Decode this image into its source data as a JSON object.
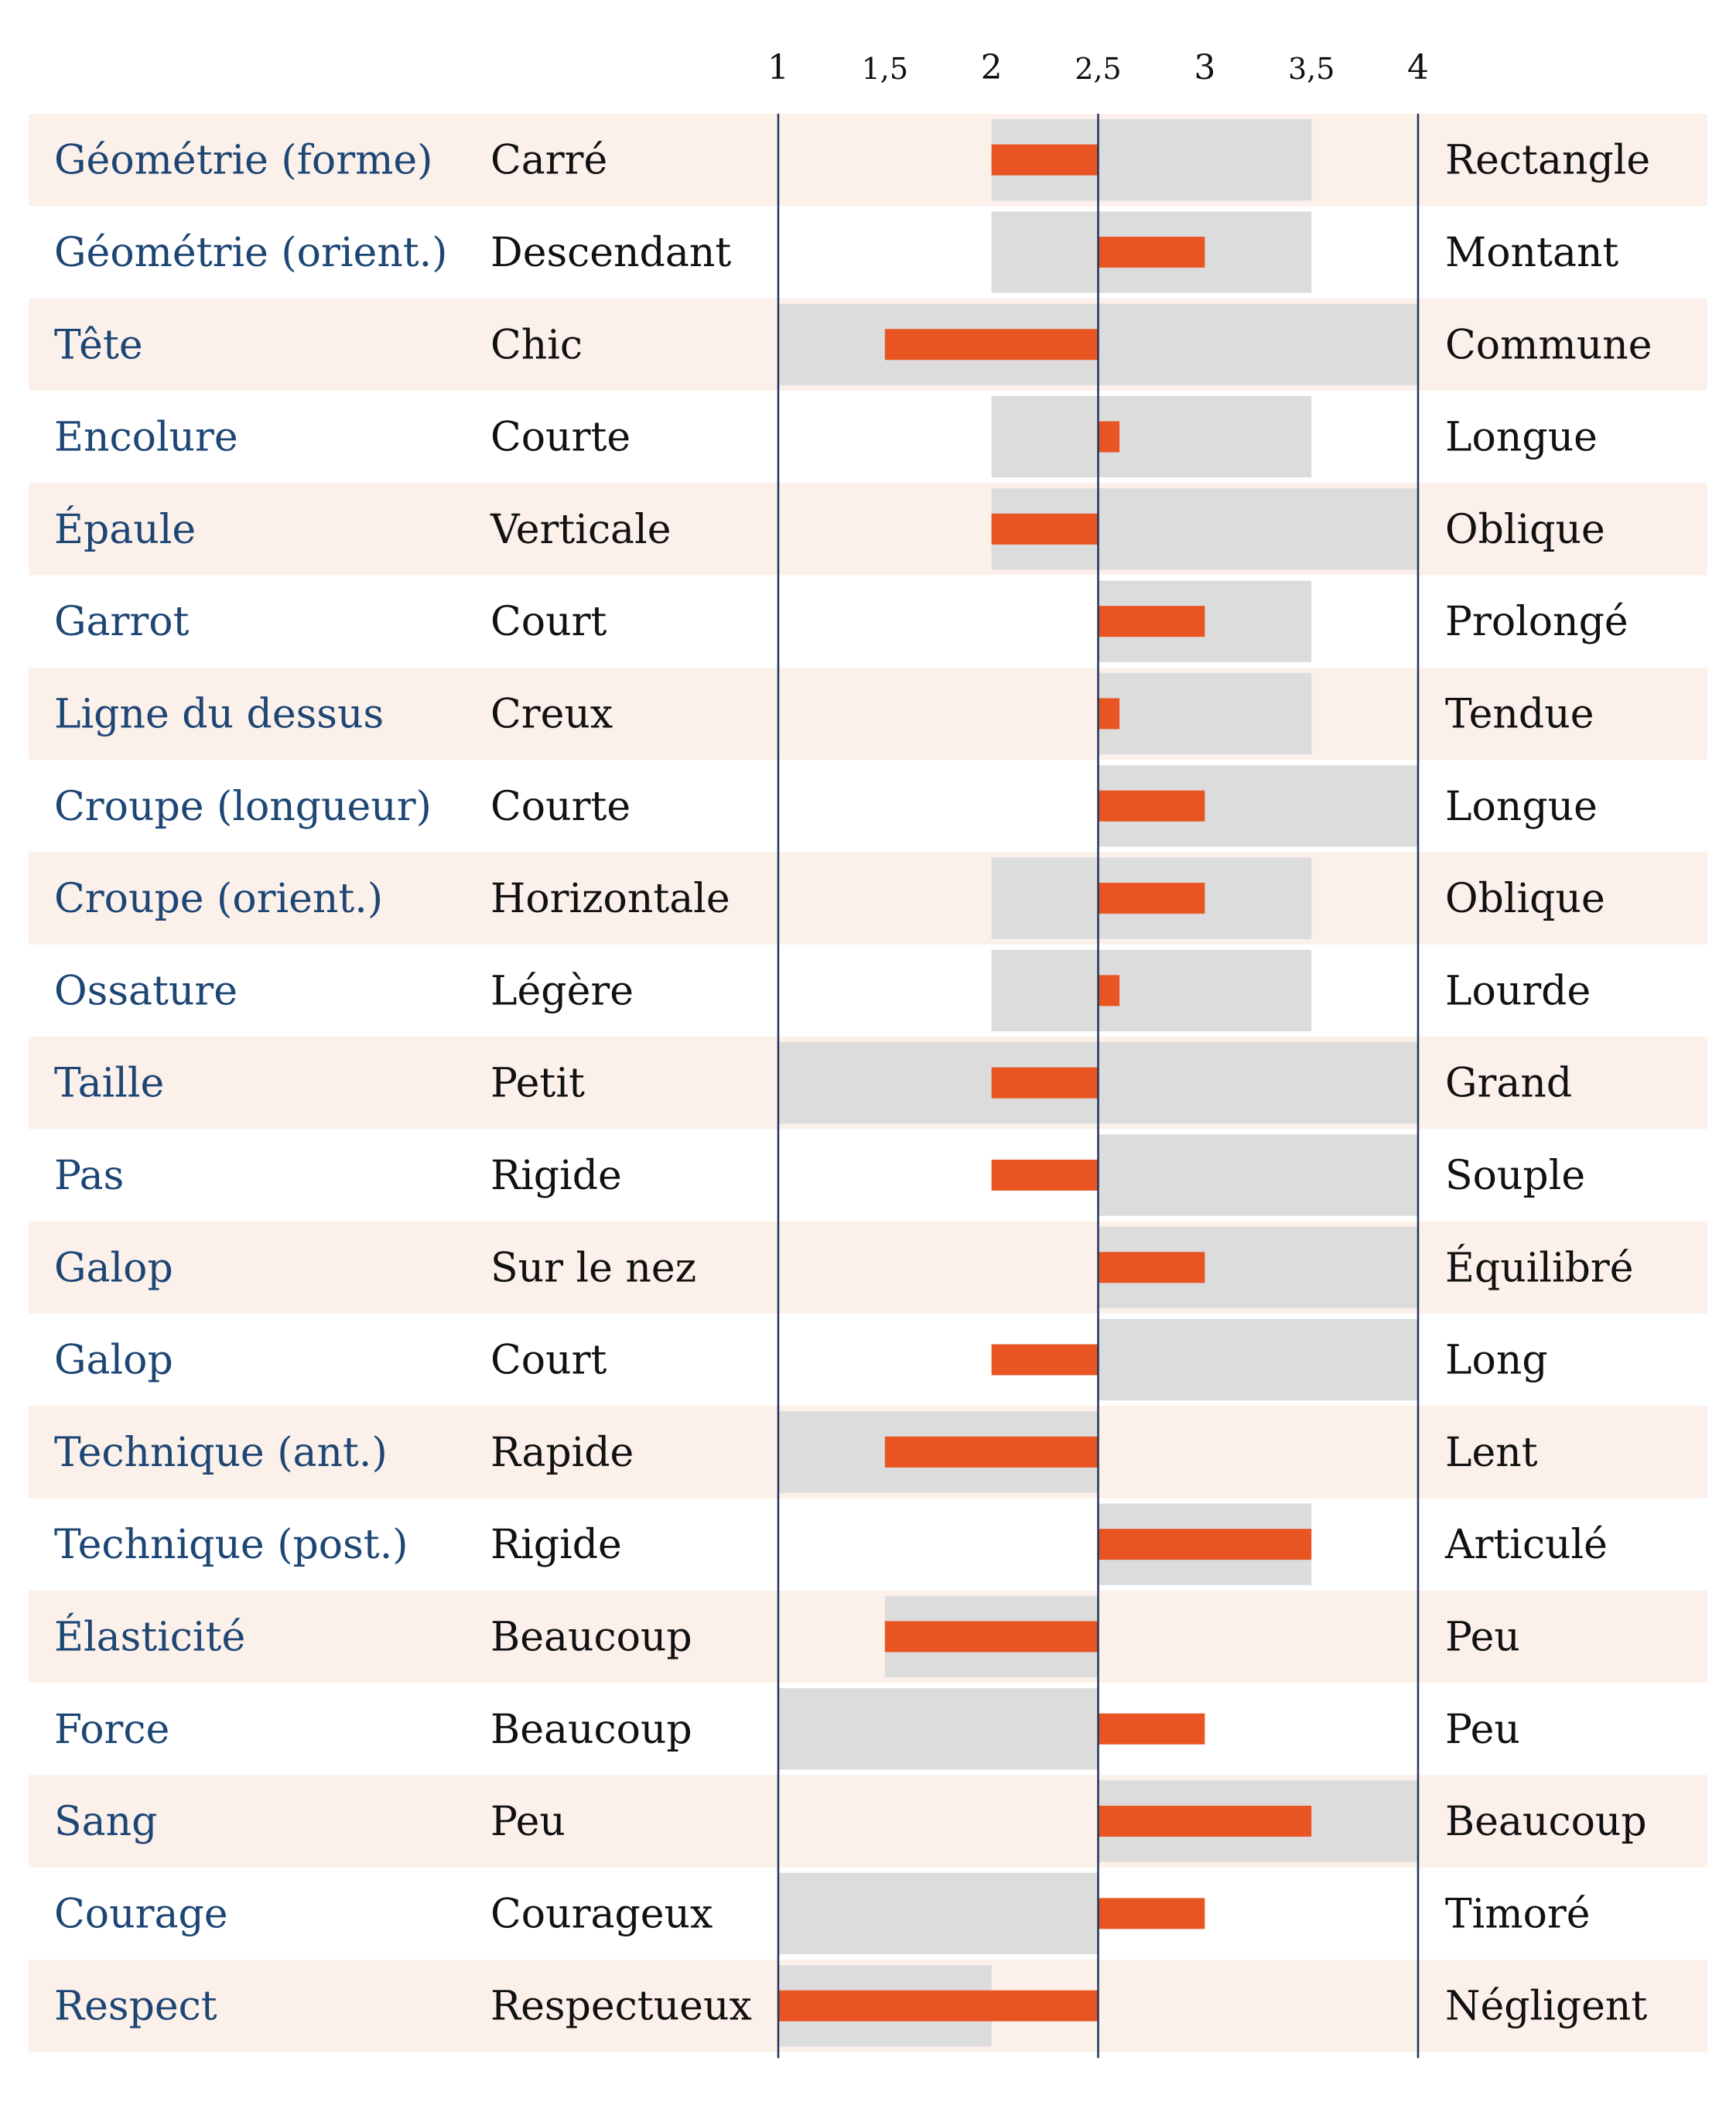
{
  "colors": {
    "row_stripe": "#fbf0ea",
    "range_bar": "#dcdcdc",
    "value_bar": "#e85522",
    "trait_label": "#1d4675",
    "axis_line": "#1d3557",
    "text": "#111111"
  },
  "chart_data": {
    "type": "bar",
    "subtype": "diverging-bar",
    "baseline": 2.5,
    "xlim": [
      1,
      4
    ],
    "x_ticks": [
      1,
      1.5,
      2,
      2.5,
      3,
      3.5,
      4
    ],
    "x_tick_labels": [
      "1",
      "1,5",
      "2",
      "2,5",
      "3",
      "3,5",
      "4"
    ],
    "rows": [
      {
        "trait": "Géométrie (forme)",
        "low": "Carré",
        "high": "Rectangle",
        "value": 2,
        "range": [
          2,
          3.5
        ],
        "stripe": true
      },
      {
        "trait": "Géométrie (orient.)",
        "low": "Descendant",
        "high": "Montant",
        "value": 3,
        "range": [
          2,
          3.5
        ],
        "stripe": false
      },
      {
        "trait": "Tête",
        "low": "Chic",
        "high": "Commune",
        "value": 1.5,
        "range": [
          1,
          4
        ],
        "stripe": true
      },
      {
        "trait": "Encolure",
        "low": "Courte",
        "high": "Longue",
        "value": 2.6,
        "range": [
          2,
          3.5
        ],
        "stripe": false
      },
      {
        "trait": "Épaule",
        "low": "Verticale",
        "high": "Oblique",
        "value": 2,
        "range": [
          2,
          4
        ],
        "stripe": true
      },
      {
        "trait": "Garrot",
        "low": "Court",
        "high": "Prolongé",
        "value": 3,
        "range": [
          2.5,
          3.5
        ],
        "stripe": false
      },
      {
        "trait": "Ligne du dessus",
        "low": "Creux",
        "high": "Tendue",
        "value": 2.6,
        "range": [
          2.5,
          3.5
        ],
        "stripe": true
      },
      {
        "trait": "Croupe (longueur)",
        "low": "Courte",
        "high": "Longue",
        "value": 3,
        "range": [
          2.5,
          4
        ],
        "stripe": false
      },
      {
        "trait": "Croupe (orient.)",
        "low": "Horizontale",
        "high": "Oblique",
        "value": 3,
        "range": [
          2,
          3.5
        ],
        "stripe": true
      },
      {
        "trait": "Ossature",
        "low": "Légère",
        "high": "Lourde",
        "value": 2.6,
        "range": [
          2,
          3.5
        ],
        "stripe": false
      },
      {
        "trait": "Taille",
        "low": "Petit",
        "high": "Grand",
        "value": 2,
        "range": [
          1,
          4
        ],
        "stripe": true
      },
      {
        "trait": "Pas",
        "low": "Rigide",
        "high": "Souple",
        "value": 2,
        "range": [
          2.5,
          4
        ],
        "stripe": false
      },
      {
        "trait": "Galop",
        "low": "Sur le nez",
        "high": "Équilibré",
        "value": 3,
        "range": [
          2.5,
          4
        ],
        "stripe": true
      },
      {
        "trait": "Galop",
        "low": "Court",
        "high": "Long",
        "value": 2,
        "range": [
          2.5,
          4
        ],
        "stripe": false
      },
      {
        "trait": "Technique (ant.)",
        "low": "Rapide",
        "high": "Lent",
        "value": 1.5,
        "range": [
          1,
          2.5
        ],
        "stripe": true
      },
      {
        "trait": "Technique (post.)",
        "low": "Rigide",
        "high": "Articulé",
        "value": 3.5,
        "range": [
          2.5,
          3.5
        ],
        "stripe": false
      },
      {
        "trait": "Élasticité",
        "low": "Beaucoup",
        "high": "Peu",
        "value": 1.5,
        "range": [
          1.5,
          2.5
        ],
        "stripe": true
      },
      {
        "trait": "Force",
        "low": "Beaucoup",
        "high": "Peu",
        "value": 3,
        "range": [
          1,
          2.5
        ],
        "stripe": false
      },
      {
        "trait": "Sang",
        "low": "Peu",
        "high": "Beaucoup",
        "value": 3.5,
        "range": [
          2.5,
          4
        ],
        "stripe": true
      },
      {
        "trait": "Courage",
        "low": "Courageux",
        "high": "Timoré",
        "value": 3,
        "range": [
          1,
          2.5
        ],
        "stripe": false
      },
      {
        "trait": "Respect",
        "low": "Respectueux",
        "high": "Négligent",
        "value": 1,
        "range": [
          1,
          2
        ],
        "stripe": true
      }
    ]
  }
}
